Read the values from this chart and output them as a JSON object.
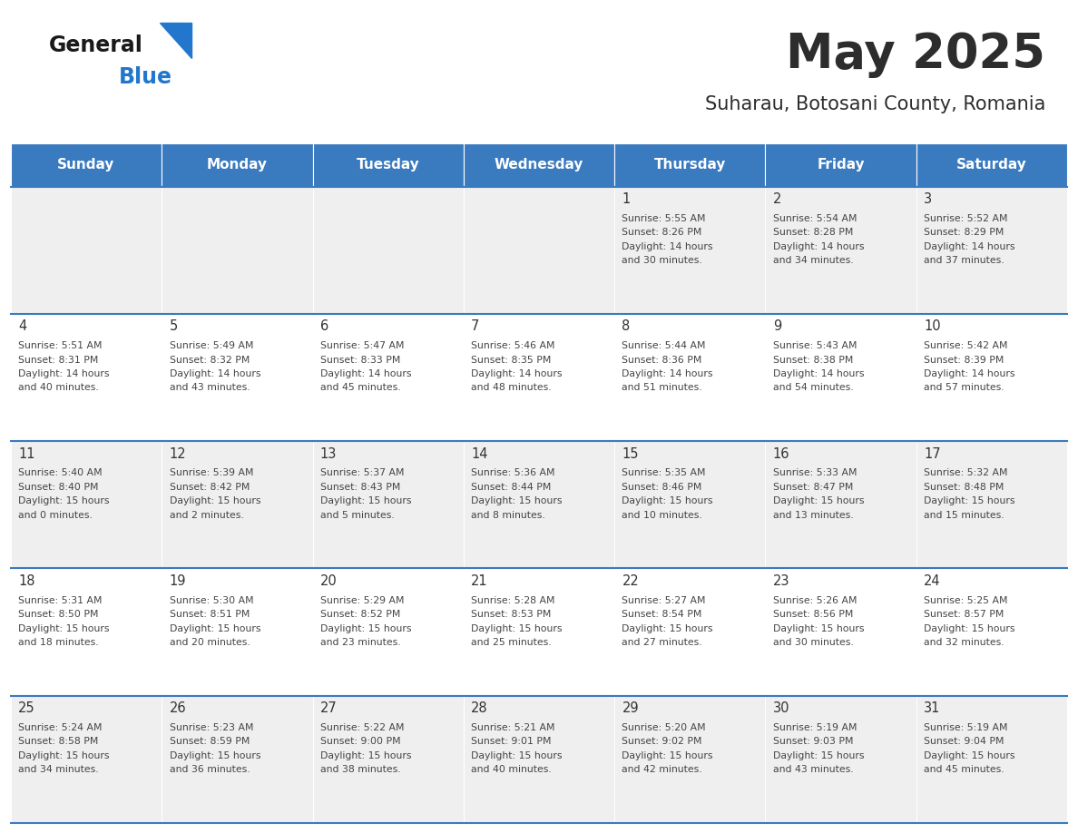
{
  "title": "May 2025",
  "subtitle": "Suharau, Botosani County, Romania",
  "header_color": "#3a7abf",
  "header_text_color": "#ffffff",
  "day_names": [
    "Sunday",
    "Monday",
    "Tuesday",
    "Wednesday",
    "Thursday",
    "Friday",
    "Saturday"
  ],
  "row_bg_even": "#efefef",
  "row_bg_odd": "#ffffff",
  "cell_border_color": "#3a7abf",
  "day_number_color": "#333333",
  "text_color": "#444444",
  "calendar_data": [
    [
      {
        "day": null,
        "sunrise": null,
        "sunset": null,
        "daylight_line1": null,
        "daylight_line2": null
      },
      {
        "day": null,
        "sunrise": null,
        "sunset": null,
        "daylight_line1": null,
        "daylight_line2": null
      },
      {
        "day": null,
        "sunrise": null,
        "sunset": null,
        "daylight_line1": null,
        "daylight_line2": null
      },
      {
        "day": null,
        "sunrise": null,
        "sunset": null,
        "daylight_line1": null,
        "daylight_line2": null
      },
      {
        "day": 1,
        "sunrise": "5:55 AM",
        "sunset": "8:26 PM",
        "daylight_line1": "Daylight: 14 hours",
        "daylight_line2": "and 30 minutes."
      },
      {
        "day": 2,
        "sunrise": "5:54 AM",
        "sunset": "8:28 PM",
        "daylight_line1": "Daylight: 14 hours",
        "daylight_line2": "and 34 minutes."
      },
      {
        "day": 3,
        "sunrise": "5:52 AM",
        "sunset": "8:29 PM",
        "daylight_line1": "Daylight: 14 hours",
        "daylight_line2": "and 37 minutes."
      }
    ],
    [
      {
        "day": 4,
        "sunrise": "5:51 AM",
        "sunset": "8:31 PM",
        "daylight_line1": "Daylight: 14 hours",
        "daylight_line2": "and 40 minutes."
      },
      {
        "day": 5,
        "sunrise": "5:49 AM",
        "sunset": "8:32 PM",
        "daylight_line1": "Daylight: 14 hours",
        "daylight_line2": "and 43 minutes."
      },
      {
        "day": 6,
        "sunrise": "5:47 AM",
        "sunset": "8:33 PM",
        "daylight_line1": "Daylight: 14 hours",
        "daylight_line2": "and 45 minutes."
      },
      {
        "day": 7,
        "sunrise": "5:46 AM",
        "sunset": "8:35 PM",
        "daylight_line1": "Daylight: 14 hours",
        "daylight_line2": "and 48 minutes."
      },
      {
        "day": 8,
        "sunrise": "5:44 AM",
        "sunset": "8:36 PM",
        "daylight_line1": "Daylight: 14 hours",
        "daylight_line2": "and 51 minutes."
      },
      {
        "day": 9,
        "sunrise": "5:43 AM",
        "sunset": "8:38 PM",
        "daylight_line1": "Daylight: 14 hours",
        "daylight_line2": "and 54 minutes."
      },
      {
        "day": 10,
        "sunrise": "5:42 AM",
        "sunset": "8:39 PM",
        "daylight_line1": "Daylight: 14 hours",
        "daylight_line2": "and 57 minutes."
      }
    ],
    [
      {
        "day": 11,
        "sunrise": "5:40 AM",
        "sunset": "8:40 PM",
        "daylight_line1": "Daylight: 15 hours",
        "daylight_line2": "and 0 minutes."
      },
      {
        "day": 12,
        "sunrise": "5:39 AM",
        "sunset": "8:42 PM",
        "daylight_line1": "Daylight: 15 hours",
        "daylight_line2": "and 2 minutes."
      },
      {
        "day": 13,
        "sunrise": "5:37 AM",
        "sunset": "8:43 PM",
        "daylight_line1": "Daylight: 15 hours",
        "daylight_line2": "and 5 minutes."
      },
      {
        "day": 14,
        "sunrise": "5:36 AM",
        "sunset": "8:44 PM",
        "daylight_line1": "Daylight: 15 hours",
        "daylight_line2": "and 8 minutes."
      },
      {
        "day": 15,
        "sunrise": "5:35 AM",
        "sunset": "8:46 PM",
        "daylight_line1": "Daylight: 15 hours",
        "daylight_line2": "and 10 minutes."
      },
      {
        "day": 16,
        "sunrise": "5:33 AM",
        "sunset": "8:47 PM",
        "daylight_line1": "Daylight: 15 hours",
        "daylight_line2": "and 13 minutes."
      },
      {
        "day": 17,
        "sunrise": "5:32 AM",
        "sunset": "8:48 PM",
        "daylight_line1": "Daylight: 15 hours",
        "daylight_line2": "and 15 minutes."
      }
    ],
    [
      {
        "day": 18,
        "sunrise": "5:31 AM",
        "sunset": "8:50 PM",
        "daylight_line1": "Daylight: 15 hours",
        "daylight_line2": "and 18 minutes."
      },
      {
        "day": 19,
        "sunrise": "5:30 AM",
        "sunset": "8:51 PM",
        "daylight_line1": "Daylight: 15 hours",
        "daylight_line2": "and 20 minutes."
      },
      {
        "day": 20,
        "sunrise": "5:29 AM",
        "sunset": "8:52 PM",
        "daylight_line1": "Daylight: 15 hours",
        "daylight_line2": "and 23 minutes."
      },
      {
        "day": 21,
        "sunrise": "5:28 AM",
        "sunset": "8:53 PM",
        "daylight_line1": "Daylight: 15 hours",
        "daylight_line2": "and 25 minutes."
      },
      {
        "day": 22,
        "sunrise": "5:27 AM",
        "sunset": "8:54 PM",
        "daylight_line1": "Daylight: 15 hours",
        "daylight_line2": "and 27 minutes."
      },
      {
        "day": 23,
        "sunrise": "5:26 AM",
        "sunset": "8:56 PM",
        "daylight_line1": "Daylight: 15 hours",
        "daylight_line2": "and 30 minutes."
      },
      {
        "day": 24,
        "sunrise": "5:25 AM",
        "sunset": "8:57 PM",
        "daylight_line1": "Daylight: 15 hours",
        "daylight_line2": "and 32 minutes."
      }
    ],
    [
      {
        "day": 25,
        "sunrise": "5:24 AM",
        "sunset": "8:58 PM",
        "daylight_line1": "Daylight: 15 hours",
        "daylight_line2": "and 34 minutes."
      },
      {
        "day": 26,
        "sunrise": "5:23 AM",
        "sunset": "8:59 PM",
        "daylight_line1": "Daylight: 15 hours",
        "daylight_line2": "and 36 minutes."
      },
      {
        "day": 27,
        "sunrise": "5:22 AM",
        "sunset": "9:00 PM",
        "daylight_line1": "Daylight: 15 hours",
        "daylight_line2": "and 38 minutes."
      },
      {
        "day": 28,
        "sunrise": "5:21 AM",
        "sunset": "9:01 PM",
        "daylight_line1": "Daylight: 15 hours",
        "daylight_line2": "and 40 minutes."
      },
      {
        "day": 29,
        "sunrise": "5:20 AM",
        "sunset": "9:02 PM",
        "daylight_line1": "Daylight: 15 hours",
        "daylight_line2": "and 42 minutes."
      },
      {
        "day": 30,
        "sunrise": "5:19 AM",
        "sunset": "9:03 PM",
        "daylight_line1": "Daylight: 15 hours",
        "daylight_line2": "and 43 minutes."
      },
      {
        "day": 31,
        "sunrise": "5:19 AM",
        "sunset": "9:04 PM",
        "daylight_line1": "Daylight: 15 hours",
        "daylight_line2": "and 45 minutes."
      }
    ]
  ]
}
